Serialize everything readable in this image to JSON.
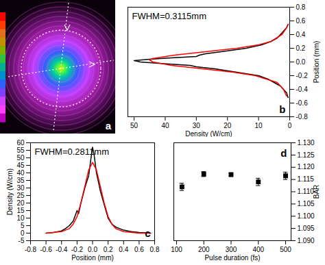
{
  "chart_data": [
    {
      "type": "image",
      "panel_label": "a"
    },
    {
      "type": "line",
      "panel_label": "b",
      "annotation": "FWHM=0.3115mm",
      "x_label": "Density (W/cm)",
      "y_label": "Position (mm)",
      "xlim": [
        52,
        0
      ],
      "xticks": [
        50,
        40,
        30,
        20,
        10,
        0
      ],
      "ylim": [
        -0.8,
        0.8
      ],
      "yticks": [
        -0.8,
        -0.6,
        -0.4,
        -0.2,
        {
          "value": 0,
          "label": "0.0"
        },
        0.2,
        0.4,
        0.6,
        0.8
      ],
      "series": [
        {
          "color": "#000000",
          "x": [
            0.5,
            1,
            2,
            3,
            5,
            7,
            10,
            17,
            24,
            30,
            32,
            42,
            48,
            50,
            45,
            38,
            30,
            29,
            27,
            22,
            14,
            9,
            6,
            4,
            3,
            2,
            1,
            0.5
          ],
          "y": [
            -0.52,
            -0.45,
            -0.4,
            -0.35,
            -0.3,
            -0.25,
            -0.2,
            -0.15,
            -0.1,
            -0.07,
            -0.05,
            -0.02,
            0,
            0.02,
            0.04,
            0.06,
            0.08,
            0.1,
            0.12,
            0.15,
            0.2,
            0.25,
            0.3,
            0.35,
            0.4,
            0.45,
            0.5,
            0.55
          ]
        },
        {
          "color": "#ff0000",
          "x": [
            1,
            2,
            4,
            11,
            18,
            28,
            38,
            44,
            45,
            44,
            37,
            27,
            17,
            10,
            6,
            2.5,
            1,
            0.5
          ],
          "y": [
            -0.5,
            -0.4,
            -0.3,
            -0.2,
            -0.15,
            -0.1,
            -0.05,
            0,
            0.03,
            0.05,
            0.1,
            0.15,
            0.2,
            0.25,
            0.3,
            0.4,
            0.5,
            0.55
          ]
        }
      ]
    },
    {
      "type": "line",
      "panel_label": "c",
      "annotation": "FWHM=0.2811mm",
      "x_label": "Position (mm)",
      "y_label": "Density (W/cm)",
      "xlim": [
        -0.8,
        0.8
      ],
      "xticks": [
        -0.8,
        -0.6,
        -0.4,
        -0.2,
        {
          "value": 0,
          "label": "0.0"
        },
        0.2,
        0.4,
        0.6,
        0.8
      ],
      "ylim": [
        -5,
        60
      ],
      "yticks": [
        -5,
        0,
        5,
        10,
        15,
        20,
        25,
        30,
        35,
        40,
        45,
        50,
        55,
        60
      ],
      "series": [
        {
          "color": "#000000",
          "x": [
            -0.6,
            -0.5,
            -0.4,
            -0.35,
            -0.3,
            -0.25,
            -0.2,
            -0.18,
            -0.15,
            -0.1,
            -0.07,
            -0.05,
            -0.02,
            0,
            0.02,
            0.05,
            0.08,
            0.1,
            0.15,
            0.2,
            0.25,
            0.3,
            0.35,
            0.4,
            0.5,
            0.6,
            0.75
          ],
          "y": [
            0,
            0.5,
            1.5,
            3,
            5,
            8,
            15,
            13,
            20,
            30,
            35,
            38,
            50,
            57,
            52,
            40,
            33,
            28,
            19,
            10,
            6,
            4,
            3,
            2,
            1,
            0.5,
            0
          ]
        },
        {
          "color": "#ff0000",
          "x": [
            -0.6,
            -0.4,
            -0.3,
            -0.25,
            -0.2,
            -0.15,
            -0.1,
            -0.05,
            0,
            0.05,
            0.1,
            0.15,
            0.2,
            0.25,
            0.3,
            0.4,
            0.6,
            0.75
          ],
          "y": [
            0,
            1,
            3,
            6,
            11,
            20,
            31,
            42,
            47,
            42,
            31,
            20,
            11,
            6,
            3,
            1,
            0,
            0
          ]
        }
      ]
    },
    {
      "type": "scatter",
      "panel_label": "d",
      "x_label": "Pulse duration (fs)",
      "y_label": "BAR",
      "xlim": [
        90,
        520
      ],
      "xticks": [
        100,
        200,
        300,
        400,
        500
      ],
      "ylim": [
        1.09,
        1.13
      ],
      "yticks": [
        {
          "value": 1.09,
          "label": "1.090"
        },
        1.095,
        {
          "value": 1.1,
          "label": "1.100"
        },
        1.105,
        {
          "value": 1.11,
          "label": "1.110"
        },
        1.115,
        {
          "value": 1.12,
          "label": "1.120"
        },
        1.125,
        {
          "value": 1.13,
          "label": "1.130"
        }
      ],
      "color": "#000000",
      "marker": "square",
      "x": [
        120,
        200,
        300,
        400,
        500
      ],
      "values": [
        1.112,
        1.1172,
        1.117,
        1.114,
        1.1165
      ],
      "errors": [
        0.0015,
        0.001,
        0.0006,
        0.0015,
        0.0015
      ]
    }
  ]
}
